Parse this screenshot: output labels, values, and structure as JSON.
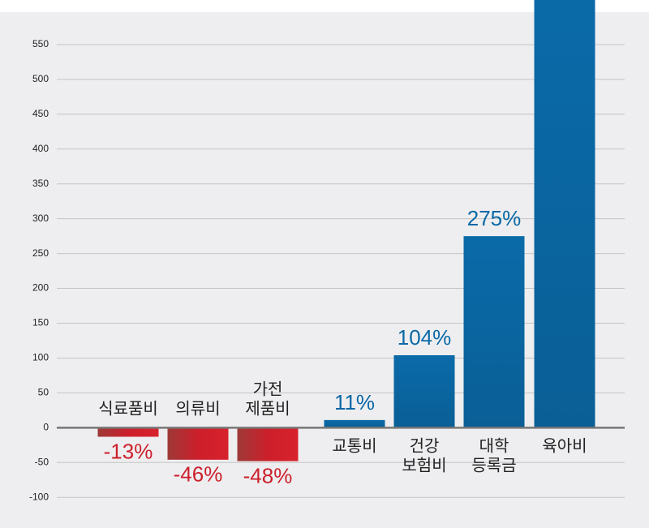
{
  "chart_data": {
    "type": "bar",
    "categories": [
      "식료품비",
      "의류비",
      "가전\n제품비",
      "교통비",
      "건강\n보험비",
      "대학\n등록금",
      "육아비"
    ],
    "values": [
      -13,
      -46,
      -48,
      11,
      104,
      275,
      614
    ],
    "value_labels": [
      "-13%",
      "-46%",
      "-48%",
      "11%",
      "104%",
      "275%",
      null
    ],
    "negative_color": "#cc1f2b",
    "positive_color": "#0a68a6",
    "ylim": [
      -144,
      614
    ],
    "yticks": [
      -100,
      -50,
      0,
      50,
      100,
      150,
      200,
      250,
      300,
      350,
      400,
      450,
      500,
      550
    ],
    "grid": true
  }
}
